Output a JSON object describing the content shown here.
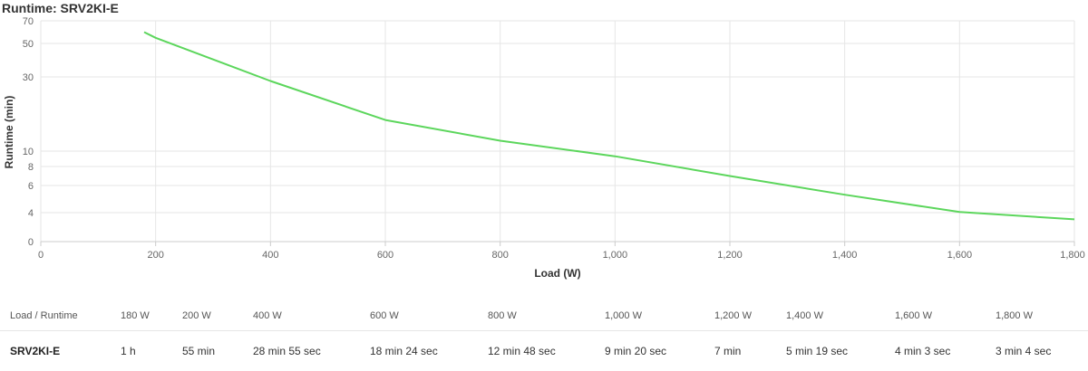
{
  "page": {
    "title": "Runtime: SRV2KI-E"
  },
  "chart_data": {
    "type": "line",
    "title": "Runtime: SRV2KI-E",
    "xlabel": "Load (W)",
    "ylabel": "Runtime (min)",
    "xlim": [
      0,
      1800
    ],
    "ylim": [
      0,
      70
    ],
    "x_ticks": [
      "0",
      "200",
      "400",
      "600",
      "800",
      "1,000",
      "1,200",
      "1,400",
      "1,600",
      "1,800"
    ],
    "y_ticks": [
      "0",
      "4",
      "6",
      "8",
      "10",
      "30",
      "50",
      "70"
    ],
    "grid": true,
    "legend": "none",
    "series": [
      {
        "color": "#5cd65c",
        "x": [
          180,
          200,
          400,
          600,
          800,
          1000,
          1200,
          1400,
          1600,
          1800
        ],
        "y": [
          60,
          55,
          28.9,
          18.4,
          12.8,
          9.33,
          7,
          5.32,
          4.05,
          3.07
        ]
      }
    ]
  },
  "table": {
    "header_label": "Load / Runtime",
    "model": "SRV2KI-E",
    "columns": [
      {
        "load": "180 W",
        "runtime": "1 h"
      },
      {
        "load": "200 W",
        "runtime": "55 min"
      },
      {
        "load": "400 W",
        "runtime": "28 min 55 sec"
      },
      {
        "load": "600 W",
        "runtime": "18 min 24 sec"
      },
      {
        "load": "800 W",
        "runtime": "12 min 48 sec"
      },
      {
        "load": "1,000 W",
        "runtime": "9 min 20 sec"
      },
      {
        "load": "1,200 W",
        "runtime": "7 min"
      },
      {
        "load": "1,400 W",
        "runtime": "5 min 19 sec"
      },
      {
        "load": "1,600 W",
        "runtime": "4 min 3 sec"
      },
      {
        "load": "1,800 W",
        "runtime": "3 min 4 sec"
      }
    ]
  }
}
